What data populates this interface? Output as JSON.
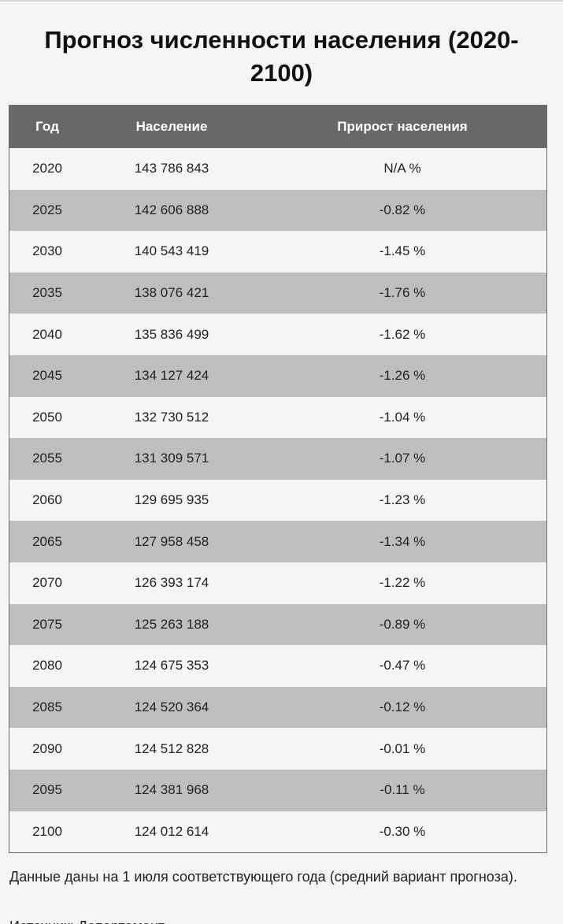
{
  "page": {
    "title": "Прогноз численности населения (2020-2100)"
  },
  "table": {
    "headers": {
      "year": "Год",
      "population": "Население",
      "growth": "Прирост населения"
    },
    "rows": [
      {
        "year": "2020",
        "population": "143 786 843",
        "growth": "N/A %"
      },
      {
        "year": "2025",
        "population": "142 606 888",
        "growth": "-0.82 %"
      },
      {
        "year": "2030",
        "population": "140 543 419",
        "growth": "-1.45 %"
      },
      {
        "year": "2035",
        "population": "138 076 421",
        "growth": "-1.76 %"
      },
      {
        "year": "2040",
        "population": "135 836 499",
        "growth": "-1.62 %"
      },
      {
        "year": "2045",
        "population": "134 127 424",
        "growth": "-1.26 %"
      },
      {
        "year": "2050",
        "population": "132 730 512",
        "growth": "-1.04 %"
      },
      {
        "year": "2055",
        "population": "131 309 571",
        "growth": "-1.07 %"
      },
      {
        "year": "2060",
        "population": "129 695 935",
        "growth": "-1.23 %"
      },
      {
        "year": "2065",
        "population": "127 958 458",
        "growth": "-1.34 %"
      },
      {
        "year": "2070",
        "population": "126 393 174",
        "growth": "-1.22 %"
      },
      {
        "year": "2075",
        "population": "125 263 188",
        "growth": "-0.89 %"
      },
      {
        "year": "2080",
        "population": "124 675 353",
        "growth": "-0.47 %"
      },
      {
        "year": "2085",
        "population": "124 520 364",
        "growth": "-0.12 %"
      },
      {
        "year": "2090",
        "population": "124 512 828",
        "growth": "-0.01 %"
      },
      {
        "year": "2095",
        "population": "124 381 968",
        "growth": "-0.11 %"
      },
      {
        "year": "2100",
        "population": "124 012 614",
        "growth": "-0.30 %"
      }
    ]
  },
  "footnote": "Данные даны на 1 июля соответствующего года (средний вариант прогноза).",
  "source_partial": "Источник: Департамент"
}
